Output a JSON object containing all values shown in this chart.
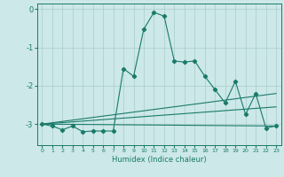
{
  "title": "",
  "xlabel": "Humidex (Indice chaleur)",
  "bg_color": "#cce8e8",
  "line_color": "#1a7a6a",
  "grid_color": "#aacccc",
  "xlim": [
    -0.5,
    23.5
  ],
  "ylim": [
    -3.55,
    0.15
  ],
  "yticks": [
    0,
    -1,
    -2,
    -3
  ],
  "xticks": [
    0,
    1,
    2,
    3,
    4,
    5,
    6,
    7,
    8,
    9,
    10,
    11,
    12,
    13,
    14,
    15,
    16,
    17,
    18,
    19,
    20,
    21,
    22,
    23
  ],
  "main_line_x": [
    0,
    1,
    2,
    3,
    4,
    5,
    6,
    7,
    8,
    9,
    10,
    11,
    12,
    13,
    14,
    15,
    16,
    17,
    18,
    19,
    20,
    21,
    22,
    23
  ],
  "main_line_y": [
    -3.0,
    -3.05,
    -3.15,
    -3.05,
    -3.2,
    -3.18,
    -3.18,
    -3.18,
    -1.55,
    -1.75,
    -0.52,
    -0.08,
    -0.18,
    -1.35,
    -1.38,
    -1.35,
    -1.75,
    -2.1,
    -2.45,
    -1.88,
    -2.75,
    -2.2,
    -3.1,
    -3.05
  ],
  "trend1_x": [
    0,
    23
  ],
  "trend1_y": [
    -3.0,
    -3.05
  ],
  "trend2_x": [
    0,
    23
  ],
  "trend2_y": [
    -3.0,
    -2.55
  ],
  "trend3_x": [
    0,
    23
  ],
  "trend3_y": [
    -3.0,
    -2.2
  ]
}
